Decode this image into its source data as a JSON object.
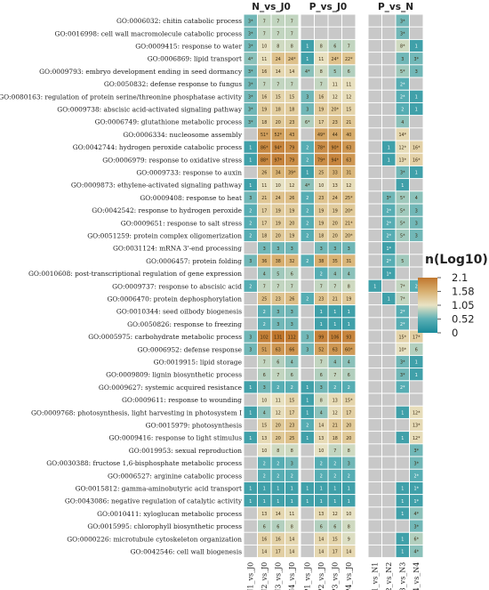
{
  "chart_data": {
    "type": "heatmap",
    "group_labels": [
      "N_vs_J0",
      "P_vs_J0",
      "P_vs_N"
    ],
    "columns": [
      "N1_vs_J0",
      "N2_vs_J0",
      "N3_vs_J0",
      "N4_vs_J0",
      "P1_vs_J0",
      "P2_vs_J0",
      "P3_vs_J0",
      "P4_vs_J0",
      "P1_vs_N1",
      "P2_vs_N2",
      "P3_vs_N3",
      "P4_vs_N4"
    ],
    "legend": {
      "title": "n(Log10)",
      "ticks": [
        2.1,
        1.58,
        1.05,
        0.52,
        0
      ],
      "range": [
        0,
        2.1
      ],
      "colors": [
        "#1a8a9a",
        "#5cb0b5",
        "#e9e3c4",
        "#d8b070",
        "#c0762d"
      ]
    },
    "na_color": "#c8c8c8",
    "rows": [
      {
        "term": "GO:0006032: chitin catabolic process",
        "values": [
          "3*",
          "7",
          "7",
          "7",
          "",
          "",
          "",
          "",
          "",
          "",
          "3*",
          ""
        ]
      },
      {
        "term": "GO:0016998: cell wall macromolecule catabolic process",
        "values": [
          "3*",
          "7",
          "7",
          "7",
          "",
          "",
          "",
          "",
          "",
          "",
          "3*",
          ""
        ]
      },
      {
        "term": "GO:0009415: response to water",
        "values": [
          "3*",
          "10",
          "8",
          "8",
          "1",
          "8",
          "6",
          "7",
          "",
          "",
          "8*",
          "1"
        ]
      },
      {
        "term": "GO:0006869: lipid transport",
        "values": [
          "4*",
          "11",
          "24",
          "24*",
          "1",
          "11",
          "24*",
          "22*",
          "",
          "",
          "3",
          "3*"
        ]
      },
      {
        "term": "GO:0009793: embryo development ending in seed dormancy",
        "values": [
          "3*",
          "16",
          "14",
          "14",
          "4*",
          "8",
          "5",
          "6",
          "",
          "",
          "5*",
          "3"
        ]
      },
      {
        "term": "GO:0050832: defense response to fungus",
        "values": [
          "3*",
          "7",
          "7",
          "7",
          "",
          "7",
          "11",
          "11",
          "",
          "",
          "2*",
          ""
        ]
      },
      {
        "term": "GO:0080163: regulation of protein serine/threonine phosphatase activity",
        "values": [
          "3*",
          "16",
          "15",
          "15",
          "3",
          "16",
          "12",
          "12",
          "",
          "",
          "2*",
          "1"
        ]
      },
      {
        "term": "GO:0009738: abscisic acid-activated signaling pathway",
        "values": [
          "3*",
          "19",
          "18",
          "18",
          "3",
          "19",
          "20*",
          "15",
          "",
          "",
          "2",
          "1"
        ]
      },
      {
        "term": "GO:0006749: glutathione metabolic process",
        "values": [
          "3*",
          "18",
          "20",
          "23",
          "6*",
          "17",
          "23",
          "21",
          "",
          "",
          "4",
          ""
        ]
      },
      {
        "term": "GO:0006334: nucleosome assembly",
        "values": [
          "",
          "51*",
          "52*",
          "43",
          "",
          "49*",
          "44",
          "40",
          "",
          "",
          "14*",
          ""
        ]
      },
      {
        "term": "GO:0042744: hydrogen peroxide catabolic process",
        "values": [
          "1",
          "86*",
          "94*",
          "79",
          "2",
          "78*",
          "90*",
          "63",
          "",
          "1",
          "12*",
          "16*"
        ]
      },
      {
        "term": "GO:0006979: response to oxidative stress",
        "values": [
          "1",
          "88*",
          "97*",
          "79",
          "2",
          "79*",
          "94*",
          "63",
          "",
          "1",
          "13*",
          "16*"
        ]
      },
      {
        "term": "GO:0009733: response to auxin",
        "values": [
          "",
          "26",
          "34",
          "39*",
          "1",
          "25",
          "33",
          "31",
          "",
          "",
          "3*",
          "1"
        ]
      },
      {
        "term": "GO:0009873: ethylene-activated signaling pathway",
        "values": [
          "1",
          "11",
          "10",
          "12",
          "4*",
          "10",
          "13",
          "12",
          "",
          "",
          "1",
          ""
        ]
      },
      {
        "term": "GO:0009408: response to heat",
        "values": [
          "3",
          "21",
          "24",
          "26",
          "2",
          "23",
          "24",
          "25*",
          "",
          "3*",
          "5*",
          "4"
        ]
      },
      {
        "term": "GO:0042542: response to hydrogen peroxide",
        "values": [
          "2",
          "17",
          "19",
          "19",
          "2",
          "19",
          "19",
          "20*",
          "",
          "2*",
          "5*",
          "3"
        ]
      },
      {
        "term": "GO:0009651: response to salt stress",
        "values": [
          "2",
          "17",
          "19",
          "20",
          "2",
          "19",
          "20",
          "21*",
          "",
          "2*",
          "5*",
          "3"
        ]
      },
      {
        "term": "GO:0051259: protein complex oligomerization",
        "values": [
          "2",
          "18",
          "20",
          "19",
          "2",
          "18",
          "20",
          "20*",
          "",
          "2*",
          "5*",
          "3"
        ]
      },
      {
        "term": "GO:0031124: mRNA 3'-end processing",
        "values": [
          "",
          "3",
          "3",
          "3",
          "",
          "3",
          "3",
          "3",
          "",
          "1*",
          "",
          ""
        ]
      },
      {
        "term": "GO:0006457: protein folding",
        "values": [
          "3",
          "36",
          "38",
          "32",
          "2",
          "38",
          "35",
          "31",
          "",
          "2*",
          "5",
          ""
        ]
      },
      {
        "term": "GO:0010608: post-transcriptional regulation of gene expression",
        "values": [
          "",
          "4",
          "5",
          "6",
          "",
          "2",
          "4",
          "4",
          "",
          "1*",
          "",
          ""
        ]
      },
      {
        "term": "GO:0009737: response to abscisic acid",
        "values": [
          "2",
          "7",
          "7",
          "7",
          "",
          "7",
          "7",
          "8",
          "1",
          "",
          "7*",
          "2"
        ]
      },
      {
        "term": "GO:0006470: protein dephosphorylation",
        "values": [
          "",
          "25",
          "23",
          "26",
          "2",
          "23",
          "21",
          "19",
          "",
          "1",
          "7*",
          ""
        ]
      },
      {
        "term": "GO:0010344: seed oilbody biogenesis",
        "values": [
          "",
          "2",
          "3",
          "3",
          "",
          "1",
          "1",
          "1",
          "",
          "",
          "2*",
          ""
        ]
      },
      {
        "term": "GO:0050826: response to freezing",
        "values": [
          "",
          "2",
          "3",
          "3",
          "",
          "1",
          "1",
          "1",
          "",
          "",
          "2*",
          ""
        ]
      },
      {
        "term": "GO:0005975: carbohydrate metabolic process",
        "values": [
          "3",
          "102",
          "131",
          "112",
          "3",
          "99",
          "106",
          "93",
          "",
          "",
          "15*",
          "17*"
        ]
      },
      {
        "term": "GO:0006952: defense response",
        "values": [
          "3",
          "51",
          "63",
          "66",
          "3",
          "52",
          "63",
          "60*",
          "",
          "",
          "10*",
          "6"
        ]
      },
      {
        "term": "GO:0019915: lipid storage",
        "values": [
          "",
          "7",
          "6",
          "4",
          "",
          "7",
          "4",
          "4",
          "",
          "",
          "3*",
          "1"
        ]
      },
      {
        "term": "GO:0009809: lignin biosynthetic process",
        "values": [
          "",
          "6",
          "7",
          "6",
          "",
          "6",
          "7",
          "6",
          "",
          "",
          "3*",
          "1"
        ]
      },
      {
        "term": "GO:0009627: systemic acquired resistance",
        "values": [
          "1",
          "3",
          "2",
          "2",
          "1",
          "3",
          "2",
          "2",
          "",
          "",
          "2*",
          ""
        ]
      },
      {
        "term": "GO:0009611: response to wounding",
        "values": [
          "",
          "10",
          "11",
          "15",
          "1",
          "8",
          "13",
          "15*",
          "",
          "",
          "",
          ""
        ]
      },
      {
        "term": "GO:0009768: photosynthesis, light harvesting in photosystem I",
        "values": [
          "1",
          "4",
          "12",
          "17",
          "1",
          "4",
          "12",
          "17",
          "",
          "",
          "1",
          "12*"
        ]
      },
      {
        "term": "GO:0015979: photosynthesis",
        "values": [
          "",
          "15",
          "20",
          "23",
          "2",
          "14",
          "21",
          "20",
          "",
          "",
          "",
          "13*"
        ]
      },
      {
        "term": "GO:0009416: response to light stimulus",
        "values": [
          "1",
          "13",
          "20",
          "25",
          "1",
          "13",
          "18",
          "20",
          "",
          "",
          "1",
          "12*"
        ]
      },
      {
        "term": "GO:0019953: sexual reproduction",
        "values": [
          "",
          "10",
          "8",
          "8",
          "",
          "10",
          "7",
          "8",
          "",
          "",
          "",
          "3*"
        ]
      },
      {
        "term": "GO:0030388: fructose 1,6-bisphosphate metabolic process",
        "values": [
          "",
          "2",
          "2",
          "3",
          "",
          "2",
          "2",
          "3",
          "",
          "",
          "",
          "3*"
        ]
      },
      {
        "term": "GO:0006527: arginine catabolic process",
        "values": [
          "",
          "2",
          "2",
          "2",
          "",
          "2",
          "2",
          "2",
          "",
          "",
          "",
          "2*"
        ]
      },
      {
        "term": "GO:0015812: gamma-aminobutyric acid transport",
        "values": [
          "1",
          "1",
          "1",
          "1",
          "1",
          "1",
          "1",
          "1",
          "",
          "",
          "1",
          "1*"
        ]
      },
      {
        "term": "GO:0043086: negative regulation of catalytic activity",
        "values": [
          "1",
          "1",
          "1",
          "1",
          "1",
          "1",
          "1",
          "1",
          "",
          "",
          "1",
          "1*"
        ]
      },
      {
        "term": "GO:0010411: xyloglucan metabolic process",
        "values": [
          "",
          "13",
          "14",
          "11",
          "",
          "13",
          "12",
          "10",
          "",
          "",
          "1",
          "4*"
        ]
      },
      {
        "term": "GO:0015995: chlorophyll biosynthetic process",
        "values": [
          "",
          "6",
          "6",
          "8",
          "",
          "6",
          "6",
          "8",
          "",
          "",
          "",
          "3*"
        ]
      },
      {
        "term": "GO:0000226: microtubule cytoskeleton organization",
        "values": [
          "",
          "16",
          "16",
          "14",
          "",
          "14",
          "15",
          "9",
          "",
          "",
          "1",
          "6*"
        ]
      },
      {
        "term": "GO:0042546: cell wall biogenesis",
        "values": [
          "",
          "14",
          "17",
          "14",
          "",
          "14",
          "17",
          "14",
          "",
          "",
          "1",
          "4*"
        ]
      }
    ]
  }
}
